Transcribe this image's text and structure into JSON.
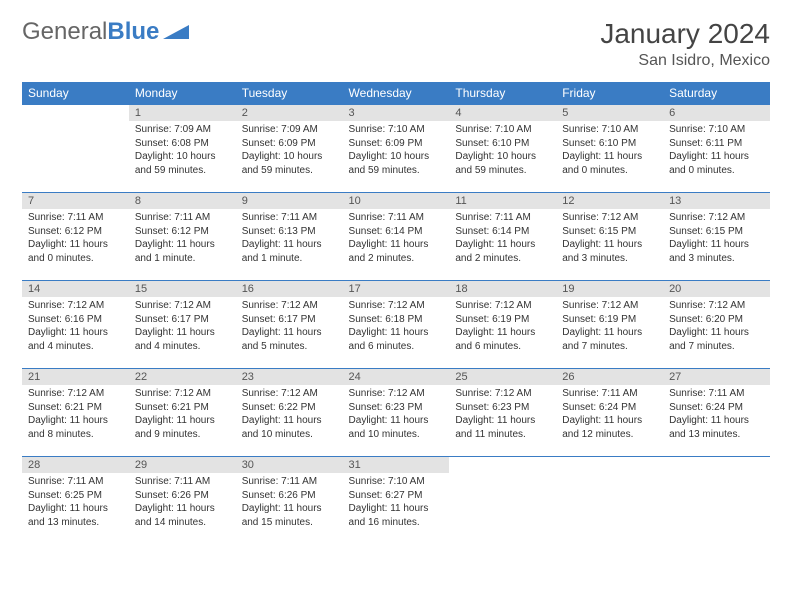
{
  "logo": {
    "general": "General",
    "blue": "Blue"
  },
  "title": "January 2024",
  "location": "San Isidro, Mexico",
  "colors": {
    "header_bg": "#3a7cc4",
    "daynum_bg": "#e3e3e3",
    "border": "#3a7cc4"
  },
  "weekdays": [
    "Sunday",
    "Monday",
    "Tuesday",
    "Wednesday",
    "Thursday",
    "Friday",
    "Saturday"
  ],
  "weeks": [
    [
      null,
      {
        "n": "1",
        "sr": "Sunrise: 7:09 AM",
        "ss": "Sunset: 6:08 PM",
        "dl": "Daylight: 10 hours and 59 minutes."
      },
      {
        "n": "2",
        "sr": "Sunrise: 7:09 AM",
        "ss": "Sunset: 6:09 PM",
        "dl": "Daylight: 10 hours and 59 minutes."
      },
      {
        "n": "3",
        "sr": "Sunrise: 7:10 AM",
        "ss": "Sunset: 6:09 PM",
        "dl": "Daylight: 10 hours and 59 minutes."
      },
      {
        "n": "4",
        "sr": "Sunrise: 7:10 AM",
        "ss": "Sunset: 6:10 PM",
        "dl": "Daylight: 10 hours and 59 minutes."
      },
      {
        "n": "5",
        "sr": "Sunrise: 7:10 AM",
        "ss": "Sunset: 6:10 PM",
        "dl": "Daylight: 11 hours and 0 minutes."
      },
      {
        "n": "6",
        "sr": "Sunrise: 7:10 AM",
        "ss": "Sunset: 6:11 PM",
        "dl": "Daylight: 11 hours and 0 minutes."
      }
    ],
    [
      {
        "n": "7",
        "sr": "Sunrise: 7:11 AM",
        "ss": "Sunset: 6:12 PM",
        "dl": "Daylight: 11 hours and 0 minutes."
      },
      {
        "n": "8",
        "sr": "Sunrise: 7:11 AM",
        "ss": "Sunset: 6:12 PM",
        "dl": "Daylight: 11 hours and 1 minute."
      },
      {
        "n": "9",
        "sr": "Sunrise: 7:11 AM",
        "ss": "Sunset: 6:13 PM",
        "dl": "Daylight: 11 hours and 1 minute."
      },
      {
        "n": "10",
        "sr": "Sunrise: 7:11 AM",
        "ss": "Sunset: 6:14 PM",
        "dl": "Daylight: 11 hours and 2 minutes."
      },
      {
        "n": "11",
        "sr": "Sunrise: 7:11 AM",
        "ss": "Sunset: 6:14 PM",
        "dl": "Daylight: 11 hours and 2 minutes."
      },
      {
        "n": "12",
        "sr": "Sunrise: 7:12 AM",
        "ss": "Sunset: 6:15 PM",
        "dl": "Daylight: 11 hours and 3 minutes."
      },
      {
        "n": "13",
        "sr": "Sunrise: 7:12 AM",
        "ss": "Sunset: 6:15 PM",
        "dl": "Daylight: 11 hours and 3 minutes."
      }
    ],
    [
      {
        "n": "14",
        "sr": "Sunrise: 7:12 AM",
        "ss": "Sunset: 6:16 PM",
        "dl": "Daylight: 11 hours and 4 minutes."
      },
      {
        "n": "15",
        "sr": "Sunrise: 7:12 AM",
        "ss": "Sunset: 6:17 PM",
        "dl": "Daylight: 11 hours and 4 minutes."
      },
      {
        "n": "16",
        "sr": "Sunrise: 7:12 AM",
        "ss": "Sunset: 6:17 PM",
        "dl": "Daylight: 11 hours and 5 minutes."
      },
      {
        "n": "17",
        "sr": "Sunrise: 7:12 AM",
        "ss": "Sunset: 6:18 PM",
        "dl": "Daylight: 11 hours and 6 minutes."
      },
      {
        "n": "18",
        "sr": "Sunrise: 7:12 AM",
        "ss": "Sunset: 6:19 PM",
        "dl": "Daylight: 11 hours and 6 minutes."
      },
      {
        "n": "19",
        "sr": "Sunrise: 7:12 AM",
        "ss": "Sunset: 6:19 PM",
        "dl": "Daylight: 11 hours and 7 minutes."
      },
      {
        "n": "20",
        "sr": "Sunrise: 7:12 AM",
        "ss": "Sunset: 6:20 PM",
        "dl": "Daylight: 11 hours and 7 minutes."
      }
    ],
    [
      {
        "n": "21",
        "sr": "Sunrise: 7:12 AM",
        "ss": "Sunset: 6:21 PM",
        "dl": "Daylight: 11 hours and 8 minutes."
      },
      {
        "n": "22",
        "sr": "Sunrise: 7:12 AM",
        "ss": "Sunset: 6:21 PM",
        "dl": "Daylight: 11 hours and 9 minutes."
      },
      {
        "n": "23",
        "sr": "Sunrise: 7:12 AM",
        "ss": "Sunset: 6:22 PM",
        "dl": "Daylight: 11 hours and 10 minutes."
      },
      {
        "n": "24",
        "sr": "Sunrise: 7:12 AM",
        "ss": "Sunset: 6:23 PM",
        "dl": "Daylight: 11 hours and 10 minutes."
      },
      {
        "n": "25",
        "sr": "Sunrise: 7:12 AM",
        "ss": "Sunset: 6:23 PM",
        "dl": "Daylight: 11 hours and 11 minutes."
      },
      {
        "n": "26",
        "sr": "Sunrise: 7:11 AM",
        "ss": "Sunset: 6:24 PM",
        "dl": "Daylight: 11 hours and 12 minutes."
      },
      {
        "n": "27",
        "sr": "Sunrise: 7:11 AM",
        "ss": "Sunset: 6:24 PM",
        "dl": "Daylight: 11 hours and 13 minutes."
      }
    ],
    [
      {
        "n": "28",
        "sr": "Sunrise: 7:11 AM",
        "ss": "Sunset: 6:25 PM",
        "dl": "Daylight: 11 hours and 13 minutes."
      },
      {
        "n": "29",
        "sr": "Sunrise: 7:11 AM",
        "ss": "Sunset: 6:26 PM",
        "dl": "Daylight: 11 hours and 14 minutes."
      },
      {
        "n": "30",
        "sr": "Sunrise: 7:11 AM",
        "ss": "Sunset: 6:26 PM",
        "dl": "Daylight: 11 hours and 15 minutes."
      },
      {
        "n": "31",
        "sr": "Sunrise: 7:10 AM",
        "ss": "Sunset: 6:27 PM",
        "dl": "Daylight: 11 hours and 16 minutes."
      },
      null,
      null,
      null
    ]
  ]
}
